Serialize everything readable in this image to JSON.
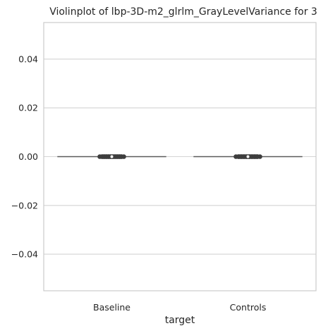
{
  "chart_data": {
    "type": "violin",
    "title": "Violinplot of lbp-3D-m2_glrlm_GrayLevelVariance for 3",
    "xlabel": "target",
    "ylabel": "",
    "categories": [
      "Baseline",
      "Controls"
    ],
    "ylim": [
      -0.055,
      0.055
    ],
    "yticks": [
      -0.04,
      -0.02,
      0.0,
      0.02,
      0.04
    ],
    "ytick_labels": [
      "−0.04",
      "−0.02",
      "0.00",
      "0.02",
      "0.04"
    ],
    "grid": true,
    "series": [
      {
        "category": "Baseline",
        "values": [
          0,
          0,
          0,
          0,
          0,
          0,
          0,
          0,
          0,
          0,
          0,
          0
        ],
        "color": "#4a4a4a"
      },
      {
        "category": "Controls",
        "values": [
          0,
          0,
          0,
          0,
          0,
          0,
          0,
          0,
          0,
          0
        ],
        "color": "#4a4a4a"
      }
    ],
    "colors": {
      "grid": "#d3d3d3",
      "frame": "#cccccc",
      "marks": "#3d3d3d"
    }
  }
}
